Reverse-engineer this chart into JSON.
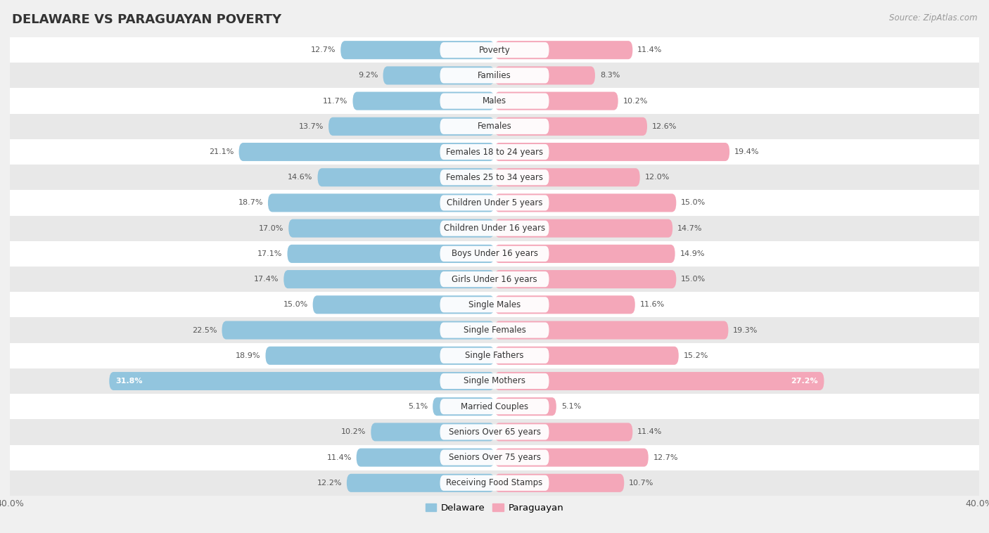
{
  "title": "DELAWARE VS PARAGUAYAN POVERTY",
  "source": "Source: ZipAtlas.com",
  "categories": [
    "Poverty",
    "Families",
    "Males",
    "Females",
    "Females 18 to 24 years",
    "Females 25 to 34 years",
    "Children Under 5 years",
    "Children Under 16 years",
    "Boys Under 16 years",
    "Girls Under 16 years",
    "Single Males",
    "Single Females",
    "Single Fathers",
    "Single Mothers",
    "Married Couples",
    "Seniors Over 65 years",
    "Seniors Over 75 years",
    "Receiving Food Stamps"
  ],
  "delaware": [
    12.7,
    9.2,
    11.7,
    13.7,
    21.1,
    14.6,
    18.7,
    17.0,
    17.1,
    17.4,
    15.0,
    22.5,
    18.9,
    31.8,
    5.1,
    10.2,
    11.4,
    12.2
  ],
  "paraguayan": [
    11.4,
    8.3,
    10.2,
    12.6,
    19.4,
    12.0,
    15.0,
    14.7,
    14.9,
    15.0,
    11.6,
    19.3,
    15.2,
    27.2,
    5.1,
    11.4,
    12.7,
    10.7
  ],
  "delaware_color": "#92C5DE",
  "paraguayan_color": "#F4A7B9",
  "background_color": "#f0f0f0",
  "row_color_light": "#ffffff",
  "row_color_dark": "#e8e8e8",
  "xlim": 40.0,
  "bar_height": 0.72,
  "title_fontsize": 13,
  "label_fontsize": 8.5,
  "value_fontsize": 8.0,
  "legend_fontsize": 9.5,
  "source_fontsize": 8.5
}
